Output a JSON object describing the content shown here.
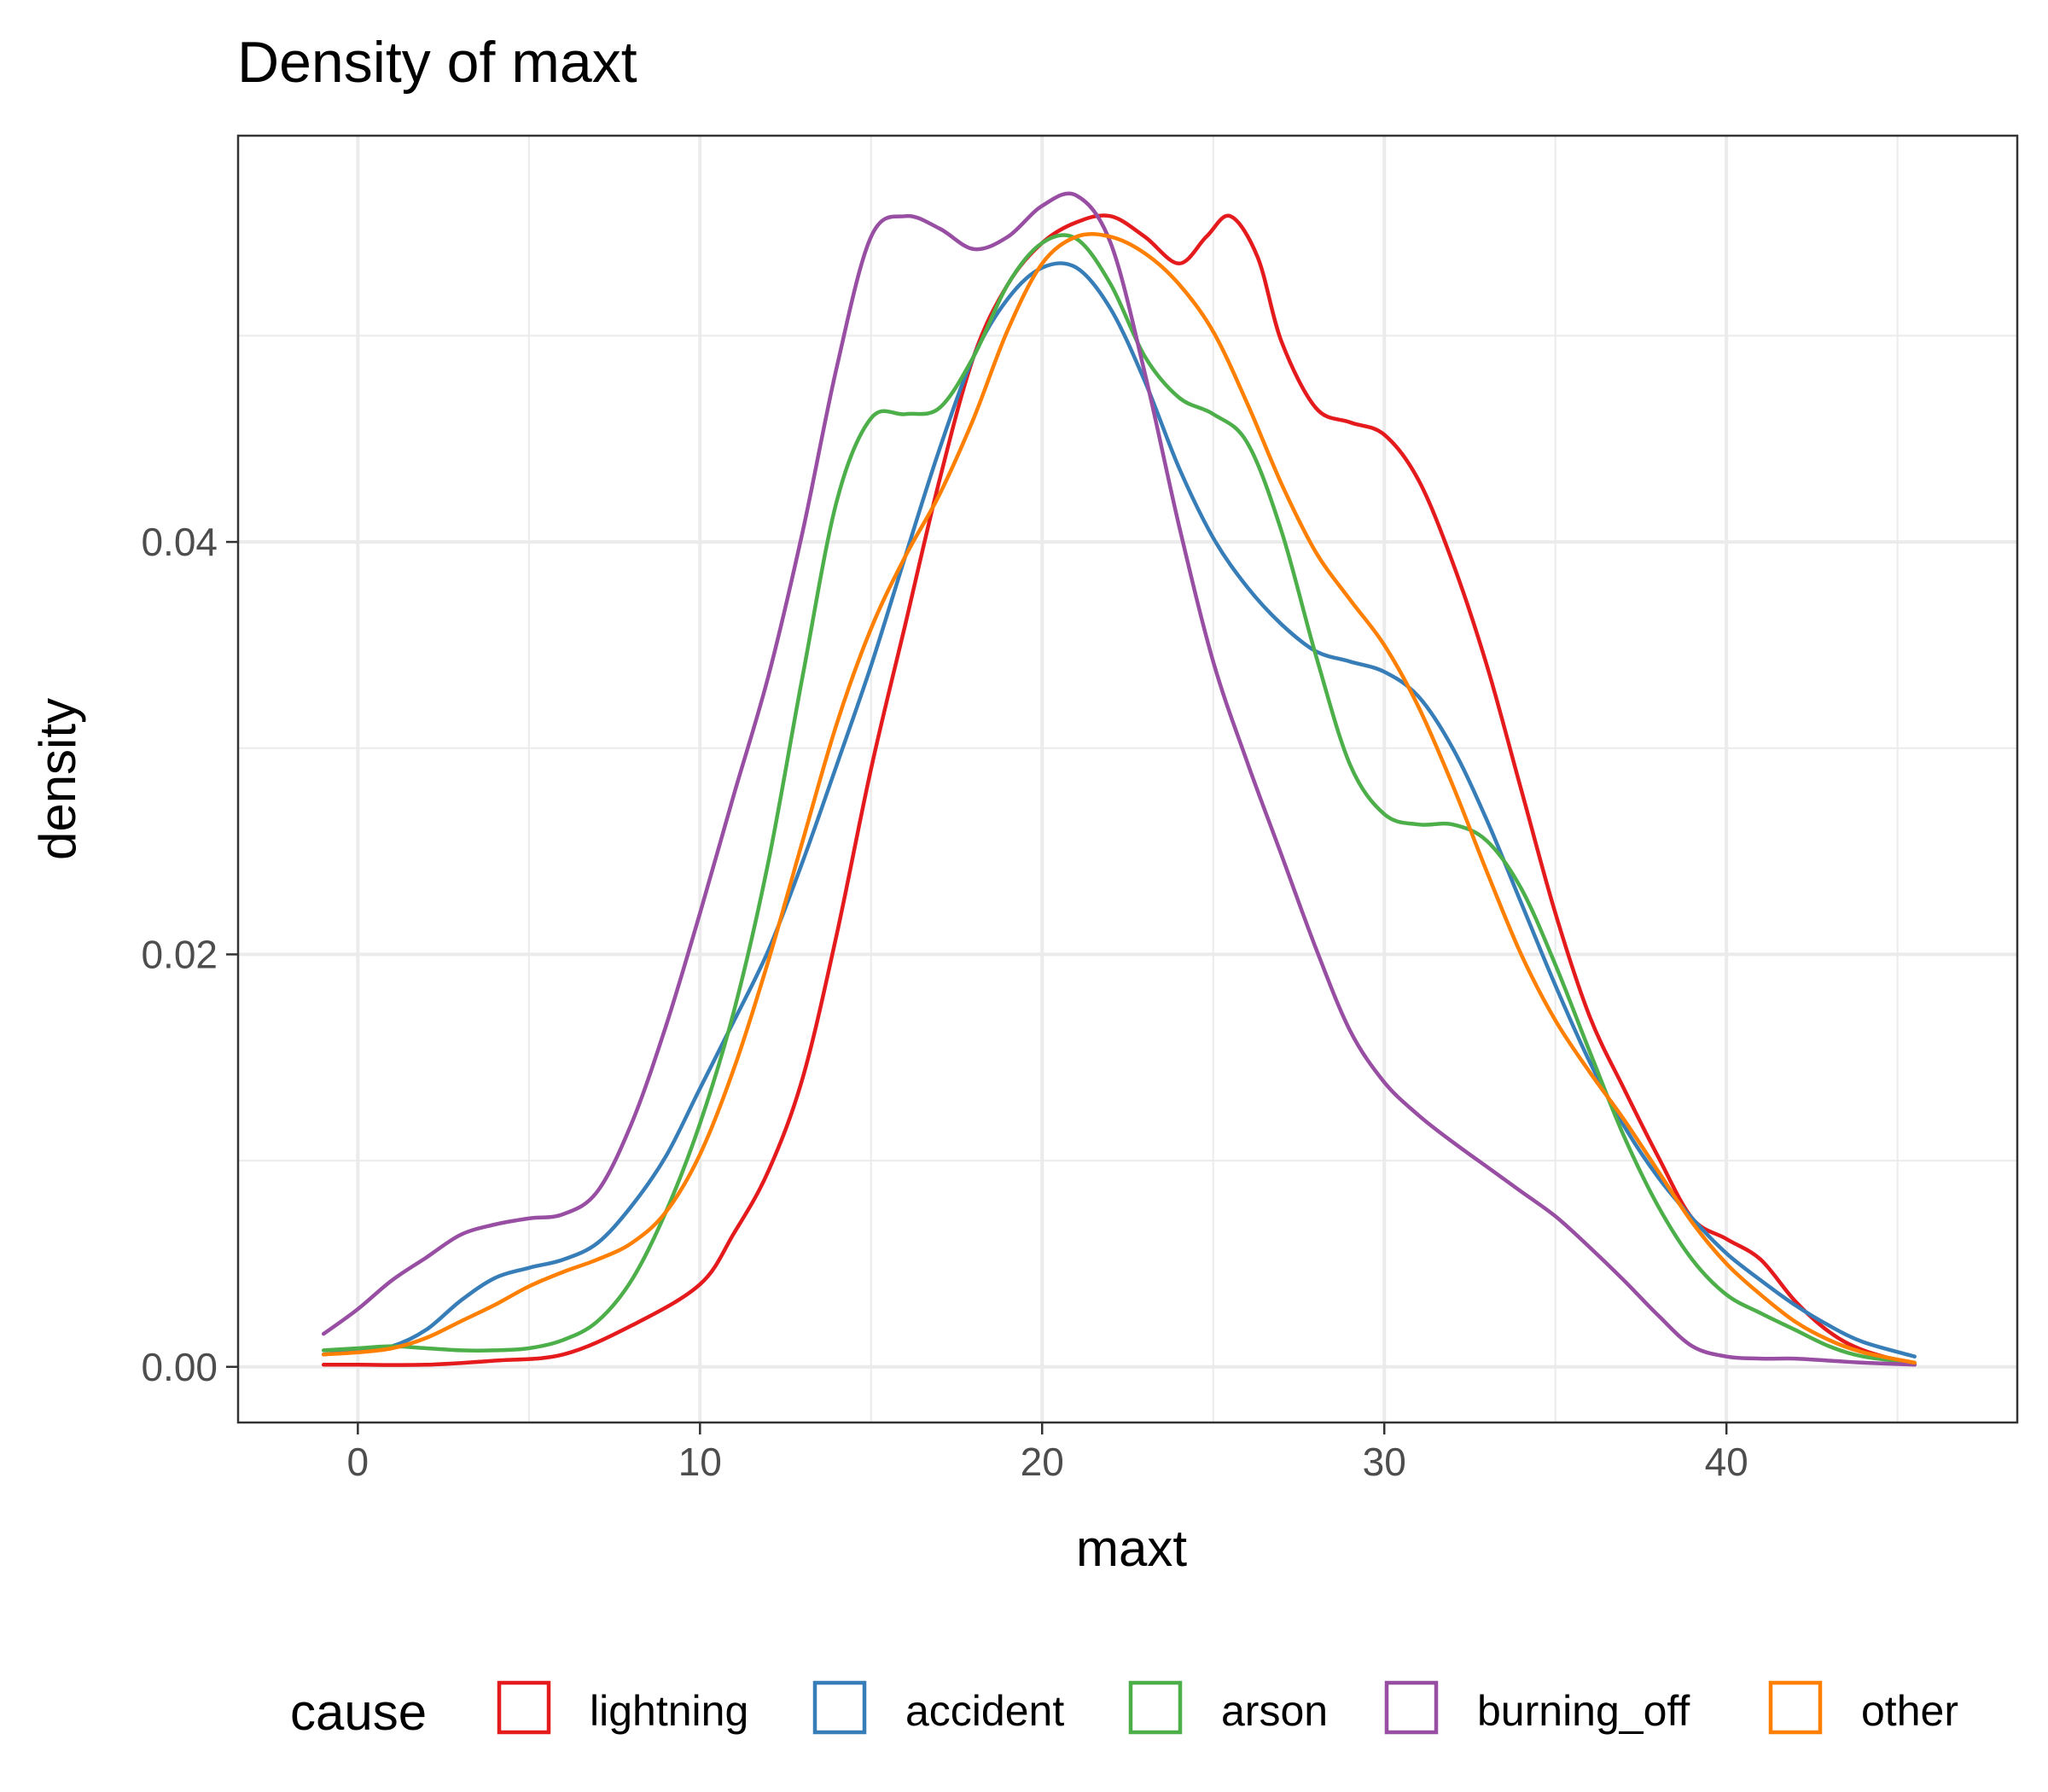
{
  "chart_data": {
    "type": "line",
    "title": "Density of maxt",
    "xlabel": "maxt",
    "ylabel": "density",
    "xlim": [
      -3.5,
      48.5
    ],
    "ylim": [
      -0.0027,
      0.0597
    ],
    "xticks": [
      0,
      10,
      20,
      30,
      40
    ],
    "xtick_labels": [
      "0",
      "10",
      "20",
      "30",
      "40"
    ],
    "yticks": [
      0.0,
      0.02,
      0.04
    ],
    "ytick_labels": [
      "0.00",
      "0.02",
      "0.04"
    ],
    "grid": true,
    "legend": {
      "title": "cause",
      "position": "bottom"
    },
    "series": [
      {
        "name": "lightning",
        "color": "#E41A1C",
        "points": [
          [
            -1,
            0.0001
          ],
          [
            0,
            0.0001
          ],
          [
            2,
            0.0001
          ],
          [
            4,
            0.0003
          ],
          [
            6,
            0.0006
          ],
          [
            8,
            0.002
          ],
          [
            10,
            0.004
          ],
          [
            11,
            0.0065
          ],
          [
            12,
            0.0095
          ],
          [
            13,
            0.014
          ],
          [
            14,
            0.021
          ],
          [
            15,
            0.029
          ],
          [
            16,
            0.036
          ],
          [
            17,
            0.043
          ],
          [
            18,
            0.049
          ],
          [
            19,
            0.0525
          ],
          [
            20,
            0.0545
          ],
          [
            21,
            0.0555
          ],
          [
            22,
            0.0558
          ],
          [
            23,
            0.0548
          ],
          [
            24,
            0.0535
          ],
          [
            24.8,
            0.0548
          ],
          [
            25.5,
            0.0558
          ],
          [
            26.3,
            0.0538
          ],
          [
            27,
            0.0497
          ],
          [
            28,
            0.0465
          ],
          [
            29,
            0.0458
          ],
          [
            30,
            0.0452
          ],
          [
            31,
            0.043
          ],
          [
            32,
            0.039
          ],
          [
            33,
            0.034
          ],
          [
            34,
            0.028
          ],
          [
            35,
            0.022
          ],
          [
            36,
            0.017
          ],
          [
            37,
            0.0135
          ],
          [
            38,
            0.0102
          ],
          [
            39,
            0.0072
          ],
          [
            40,
            0.0062
          ],
          [
            41,
            0.0052
          ],
          [
            42,
            0.0032
          ],
          [
            43,
            0.0017
          ],
          [
            44,
            0.0008
          ],
          [
            45.5,
            0.0001
          ]
        ]
      },
      {
        "name": "accident",
        "color": "#377EB8",
        "points": [
          [
            -1,
            0.0006
          ],
          [
            0,
            0.0008
          ],
          [
            1,
            0.001
          ],
          [
            2,
            0.0018
          ],
          [
            3,
            0.0032
          ],
          [
            4,
            0.0043
          ],
          [
            5,
            0.0048
          ],
          [
            6,
            0.0052
          ],
          [
            7,
            0.006
          ],
          [
            8,
            0.0078
          ],
          [
            9,
            0.0102
          ],
          [
            10,
            0.0135
          ],
          [
            11,
            0.0168
          ],
          [
            12,
            0.0202
          ],
          [
            13,
            0.0245
          ],
          [
            14,
            0.0292
          ],
          [
            15,
            0.034
          ],
          [
            16,
            0.0393
          ],
          [
            17,
            0.0445
          ],
          [
            18,
            0.049
          ],
          [
            19,
            0.0518
          ],
          [
            20,
            0.0533
          ],
          [
            21,
            0.0533
          ],
          [
            22,
            0.0513
          ],
          [
            23,
            0.0478
          ],
          [
            24,
            0.0436
          ],
          [
            25,
            0.0402
          ],
          [
            26,
            0.0378
          ],
          [
            27,
            0.036
          ],
          [
            28,
            0.0347
          ],
          [
            29,
            0.0342
          ],
          [
            30,
            0.0337
          ],
          [
            31,
            0.0325
          ],
          [
            32,
            0.03
          ],
          [
            33,
            0.0265
          ],
          [
            34,
            0.0225
          ],
          [
            35,
            0.0185
          ],
          [
            36,
            0.0148
          ],
          [
            37,
            0.0117
          ],
          [
            38,
            0.0092
          ],
          [
            39,
            0.0072
          ],
          [
            40,
            0.0055
          ],
          [
            41,
            0.0042
          ],
          [
            42,
            0.003
          ],
          [
            43,
            0.002
          ],
          [
            44,
            0.0012
          ],
          [
            45.5,
            0.0005
          ]
        ]
      },
      {
        "name": "arson",
        "color": "#4DAF4A",
        "points": [
          [
            -1,
            0.0008
          ],
          [
            0,
            0.0009
          ],
          [
            1,
            0.001
          ],
          [
            2,
            0.0009
          ],
          [
            3,
            0.0008
          ],
          [
            4,
            0.0008
          ],
          [
            5,
            0.0009
          ],
          [
            6,
            0.0013
          ],
          [
            7,
            0.0022
          ],
          [
            8,
            0.0042
          ],
          [
            9,
            0.0075
          ],
          [
            10,
            0.0118
          ],
          [
            11,
            0.0173
          ],
          [
            12,
            0.0245
          ],
          [
            13,
            0.0335
          ],
          [
            14,
            0.042
          ],
          [
            15,
            0.046
          ],
          [
            16,
            0.0462
          ],
          [
            17,
            0.0465
          ],
          [
            18,
            0.049
          ],
          [
            19,
            0.0525
          ],
          [
            20,
            0.0545
          ],
          [
            21,
            0.0547
          ],
          [
            22,
            0.0525
          ],
          [
            23,
            0.049
          ],
          [
            24,
            0.047
          ],
          [
            25,
            0.0462
          ],
          [
            26,
            0.0448
          ],
          [
            27,
            0.0405
          ],
          [
            28,
            0.0345
          ],
          [
            29,
            0.0292
          ],
          [
            30,
            0.0268
          ],
          [
            31,
            0.0263
          ],
          [
            32,
            0.0263
          ],
          [
            33,
            0.0255
          ],
          [
            34,
            0.0232
          ],
          [
            35,
            0.0195
          ],
          [
            36,
            0.0153
          ],
          [
            37,
            0.0112
          ],
          [
            38,
            0.0078
          ],
          [
            39,
            0.0052
          ],
          [
            40,
            0.0035
          ],
          [
            41,
            0.0026
          ],
          [
            42,
            0.0018
          ],
          [
            43,
            0.001
          ],
          [
            44,
            0.0005
          ],
          [
            45.5,
            0.0002
          ]
        ]
      },
      {
        "name": "burning_off",
        "color": "#984EA3",
        "points": [
          [
            -1,
            0.0016
          ],
          [
            0,
            0.0028
          ],
          [
            1,
            0.0042
          ],
          [
            2,
            0.0053
          ],
          [
            3,
            0.0064
          ],
          [
            4,
            0.0069
          ],
          [
            5,
            0.0072
          ],
          [
            6,
            0.0074
          ],
          [
            7,
            0.0085
          ],
          [
            8,
            0.0118
          ],
          [
            9,
            0.0165
          ],
          [
            10,
            0.022
          ],
          [
            11,
            0.0278
          ],
          [
            12,
            0.0335
          ],
          [
            13,
            0.0405
          ],
          [
            14,
            0.0485
          ],
          [
            15,
            0.0548
          ],
          [
            16,
            0.0558
          ],
          [
            17,
            0.0552
          ],
          [
            18,
            0.0542
          ],
          [
            19,
            0.0548
          ],
          [
            20,
            0.0563
          ],
          [
            21,
            0.0568
          ],
          [
            22,
            0.0545
          ],
          [
            23,
            0.0482
          ],
          [
            24,
            0.0408
          ],
          [
            25,
            0.0342
          ],
          [
            26,
            0.0293
          ],
          [
            27,
            0.0248
          ],
          [
            28,
            0.0203
          ],
          [
            29,
            0.0163
          ],
          [
            30,
            0.0138
          ],
          [
            31,
            0.0122
          ],
          [
            32,
            0.0109
          ],
          [
            33,
            0.0097
          ],
          [
            34,
            0.0085
          ],
          [
            35,
            0.0073
          ],
          [
            36,
            0.0058
          ],
          [
            37,
            0.0042
          ],
          [
            38,
            0.0025
          ],
          [
            39,
            0.001
          ],
          [
            40,
            0.0005
          ],
          [
            41,
            0.0004
          ],
          [
            42,
            0.0004
          ],
          [
            43,
            0.0003
          ],
          [
            44,
            0.0002
          ],
          [
            45.5,
            0.0001
          ]
        ]
      },
      {
        "name": "other",
        "color": "#FF7F00",
        "points": [
          [
            -1,
            0.0006
          ],
          [
            0,
            0.0007
          ],
          [
            1,
            0.0009
          ],
          [
            2,
            0.0014
          ],
          [
            3,
            0.0022
          ],
          [
            4,
            0.003
          ],
          [
            5,
            0.0039
          ],
          [
            6,
            0.0046
          ],
          [
            7,
            0.0052
          ],
          [
            8,
            0.006
          ],
          [
            9,
            0.0075
          ],
          [
            10,
            0.0103
          ],
          [
            11,
            0.0145
          ],
          [
            12,
            0.0197
          ],
          [
            13,
            0.0255
          ],
          [
            14,
            0.0312
          ],
          [
            15,
            0.0358
          ],
          [
            16,
            0.0393
          ],
          [
            17,
            0.0423
          ],
          [
            18,
            0.046
          ],
          [
            19,
            0.0503
          ],
          [
            20,
            0.0535
          ],
          [
            21,
            0.0548
          ],
          [
            22,
            0.0548
          ],
          [
            23,
            0.054
          ],
          [
            24,
            0.0525
          ],
          [
            25,
            0.0502
          ],
          [
            26,
            0.0467
          ],
          [
            27,
            0.0428
          ],
          [
            28,
            0.0395
          ],
          [
            29,
            0.0372
          ],
          [
            30,
            0.035
          ],
          [
            31,
            0.032
          ],
          [
            32,
            0.0282
          ],
          [
            33,
            0.024
          ],
          [
            34,
            0.02
          ],
          [
            35,
            0.0168
          ],
          [
            36,
            0.0143
          ],
          [
            37,
            0.012
          ],
          [
            38,
            0.0095
          ],
          [
            39,
            0.007
          ],
          [
            40,
            0.005
          ],
          [
            41,
            0.0035
          ],
          [
            42,
            0.0022
          ],
          [
            43,
            0.0013
          ],
          [
            44,
            0.0007
          ],
          [
            45.5,
            0.0002
          ]
        ]
      }
    ]
  }
}
